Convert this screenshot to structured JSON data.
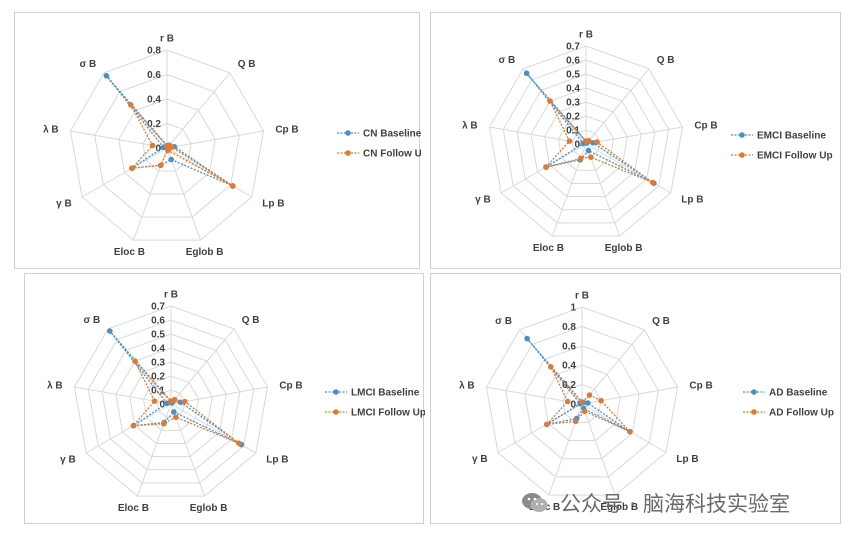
{
  "colors": {
    "baseline": "#4a90c8",
    "followup": "#e07a30",
    "grid": "#d9d9d9",
    "text": "#404040"
  },
  "chart_data": [
    {
      "type": "radar",
      "axes": [
        "r B",
        "Q B",
        "Cp B",
        "Lp B",
        "Eglob B",
        "Eloc B",
        "γ B",
        "λ B",
        "σ B"
      ],
      "ticks": [
        "0",
        "0.2",
        "0.4",
        "0.6",
        "0.8"
      ],
      "rmax": 0.8,
      "series": [
        {
          "name": "CN Baseline",
          "values": [
            0.02,
            0.01,
            0.06,
            0.62,
            0.1,
            0.15,
            0.33,
            0.03,
            0.77
          ]
        },
        {
          "name": "CN Follow Up",
          "values": [
            0.02,
            0.03,
            0.04,
            0.62,
            0.02,
            0.15,
            0.33,
            0.12,
            0.46
          ]
        }
      ]
    },
    {
      "type": "radar",
      "axes": [
        "r B",
        "Q B",
        "Cp B",
        "Lp B",
        "Eglob B",
        "Eloc B",
        "γ B",
        "λ B",
        "σ B"
      ],
      "ticks": [
        "0",
        "0.1",
        "0.2",
        "0.3",
        "0.4",
        "0.5",
        "0.6",
        "0.7"
      ],
      "rmax": 0.7,
      "series": [
        {
          "name": "EMCI Baseline",
          "values": [
            0.02,
            0.01,
            0.05,
            0.56,
            0.05,
            0.12,
            0.33,
            0.02,
            0.66
          ]
        },
        {
          "name": "EMCI Follow Up",
          "values": [
            0.02,
            0.03,
            0.08,
            0.55,
            0.1,
            0.11,
            0.33,
            0.12,
            0.4
          ]
        }
      ]
    },
    {
      "type": "radar",
      "axes": [
        "r B",
        "Q B",
        "Cp B",
        "Lp B",
        "Eglob B",
        "Eloc B",
        "γ B",
        "λ B",
        "σ B"
      ],
      "ticks": [
        "0",
        "0.1",
        "0.2",
        "0.3",
        "0.4",
        "0.5",
        "0.6",
        "0.7"
      ],
      "rmax": 0.7,
      "series": [
        {
          "name": "LMCI Baseline",
          "values": [
            0.02,
            0.01,
            0.07,
            0.58,
            0.06,
            0.14,
            0.31,
            0.03,
            0.68
          ]
        },
        {
          "name": "LMCI Follow Up",
          "values": [
            0.02,
            0.04,
            0.1,
            0.56,
            0.1,
            0.15,
            0.31,
            0.12,
            0.4
          ]
        }
      ]
    },
    {
      "type": "radar",
      "axes": [
        "r B",
        "Q B",
        "Cp B",
        "Lp B",
        "Eglob B",
        "Eloc B",
        "γ B",
        "λ B",
        "σ B"
      ],
      "ticks": [
        "0",
        "0.2",
        "0.4",
        "0.6",
        "0.8",
        "1"
      ],
      "rmax": 1.0,
      "series": [
        {
          "name": "AD Baseline",
          "values": [
            0.02,
            0.02,
            0.06,
            0.57,
            0.05,
            0.16,
            0.42,
            0.02,
            0.88
          ]
        },
        {
          "name": "AD Follow Up",
          "values": [
            0.02,
            0.12,
            0.2,
            0.57,
            0.08,
            0.19,
            0.42,
            0.15,
            0.5
          ]
        }
      ]
    }
  ],
  "watermark": {
    "text": "公众号 · 脑海科技实验室"
  }
}
